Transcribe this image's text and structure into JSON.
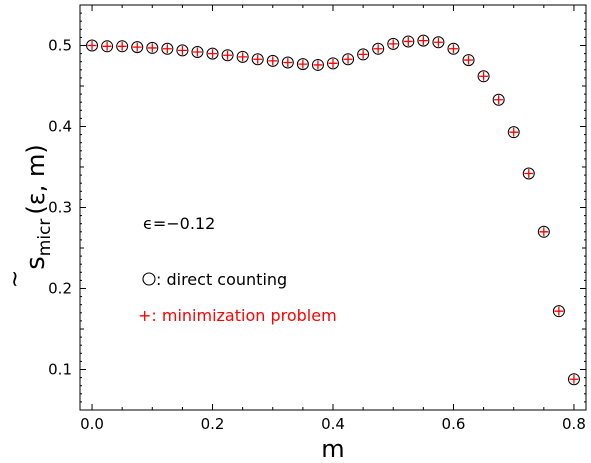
{
  "chart_data": {
    "type": "scatter",
    "xlabel": "m",
    "ylabel": {
      "base": "s",
      "accent": "~",
      "subscript": "micr",
      "args": "(ε, m)"
    },
    "xlim": [
      -0.02,
      0.82
    ],
    "ylim": [
      0.05,
      0.55
    ],
    "x_ticks": [
      "0.0",
      "0.2",
      "0.4",
      "0.6",
      "0.8"
    ],
    "y_ticks": [
      "0.1",
      "0.2",
      "0.3",
      "0.4",
      "0.5"
    ],
    "grid": false,
    "annotations": {
      "epsilon": "ϵ=−0.12",
      "circle_label": ": direct counting",
      "plus_label": "+: minimization problem"
    },
    "colors": {
      "circle": "#000000",
      "plus": "#ff0000"
    },
    "x": [
      0.0,
      0.025,
      0.05,
      0.075,
      0.1,
      0.125,
      0.15,
      0.175,
      0.2,
      0.225,
      0.25,
      0.275,
      0.3,
      0.325,
      0.35,
      0.375,
      0.4,
      0.425,
      0.45,
      0.475,
      0.5,
      0.525,
      0.55,
      0.575,
      0.6,
      0.625,
      0.65,
      0.675,
      0.7,
      0.725,
      0.75,
      0.775,
      0.8
    ],
    "series": [
      {
        "name": "direct counting",
        "marker": "circle",
        "values": [
          0.5,
          0.499,
          0.499,
          0.498,
          0.497,
          0.496,
          0.494,
          0.492,
          0.49,
          0.488,
          0.486,
          0.483,
          0.481,
          0.479,
          0.477,
          0.476,
          0.478,
          0.483,
          0.489,
          0.496,
          0.502,
          0.505,
          0.506,
          0.504,
          0.496,
          0.482,
          0.462,
          0.433,
          0.393,
          0.342,
          0.27,
          0.172,
          0.088
        ]
      },
      {
        "name": "minimization problem",
        "marker": "plus",
        "values": [
          0.5,
          0.499,
          0.499,
          0.498,
          0.497,
          0.496,
          0.494,
          0.492,
          0.49,
          0.488,
          0.486,
          0.483,
          0.481,
          0.479,
          0.477,
          0.476,
          0.478,
          0.483,
          0.489,
          0.496,
          0.502,
          0.505,
          0.506,
          0.504,
          0.496,
          0.482,
          0.462,
          0.433,
          0.393,
          0.342,
          0.27,
          0.172,
          0.088
        ]
      }
    ]
  }
}
